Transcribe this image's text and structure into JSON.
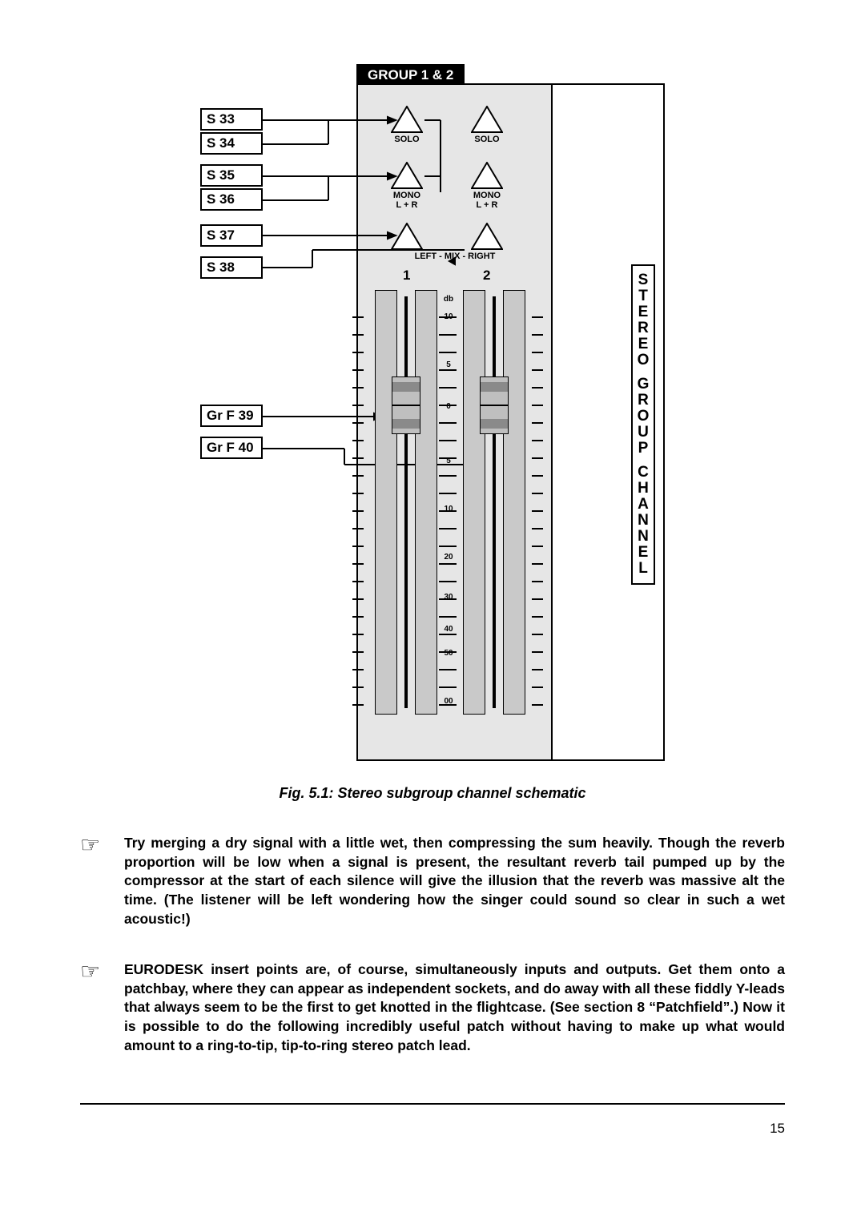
{
  "header": {
    "group_title": "GROUP 1 & 2"
  },
  "labels": {
    "s33": "S 33",
    "s34": "S 34",
    "s35": "S 35",
    "s36": "S 36",
    "s37": "S 37",
    "s38": "S 38",
    "grf39": "Gr  F 39",
    "grf40": "Gr  F 40"
  },
  "tri_labels": {
    "solo": "SOLO",
    "mono": "MONO",
    "lr": "L + R",
    "mix": "LEFT  -  MIX        -  RIGHT"
  },
  "cols": {
    "one": "1",
    "two": "2"
  },
  "scale": {
    "db": "db",
    "p10": "10",
    "p5": "5",
    "zero": "0",
    "m5": "5",
    "m10": "10",
    "m20": "20",
    "m30": "30",
    "m40": "40",
    "m50": "50",
    "m00": "00"
  },
  "side_label": "STEREO GROUP CHANNEL",
  "caption": "Fig. 5.1: Stereo subgroup channel schematic",
  "tips": {
    "t1": "Try merging a dry signal with a little wet, then compressing the sum heavily. Though the reverb proportion will be low when a signal is present, the resultant reverb tail pumped up by the compressor at the start of each silence will give the illusion that the reverb was massive alt the time. (The listener will be left wondering how the singer could sound so clear in such a wet acoustic!)",
    "t2": "EURODESK insert points are, of course, simultaneously inputs and outputs. Get them onto a patchbay, where they can appear as independent sockets, and do away with all these fiddly Y-leads that always seem to be the first to get knotted in the flightcase. (See section 8 “Patchfield”.) Now it is possible to do the following incredibly useful patch without having to make up what would amount to a ring-to-tip, tip-to-ring stereo patch lead."
  },
  "page_number": "15",
  "style": {
    "colors": {
      "bg": "#ffffff",
      "mixer_bg": "#e6e6e6",
      "fader_cap": "#bfbfbf",
      "fader_band": "#8a8a8a",
      "black": "#000000"
    }
  }
}
